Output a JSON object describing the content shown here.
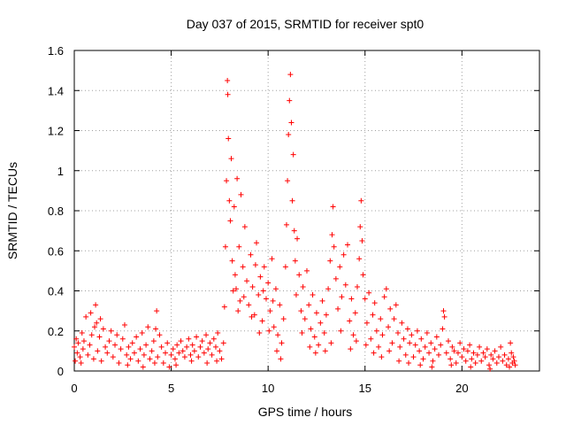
{
  "chart_data": {
    "type": "scatter",
    "title": "Day 037 of 2015, SRMTID for receiver spt0",
    "xlabel": "GPS time / hours",
    "ylabel": "SRMTID / TECUs",
    "xlim": [
      0,
      24
    ],
    "ylim": [
      0,
      1.6
    ],
    "xticks": [
      0,
      5,
      10,
      15,
      20
    ],
    "xtick_labels": [
      "0",
      "5",
      "10",
      "15",
      "20"
    ],
    "yticks": [
      0,
      0.2,
      0.4,
      0.6,
      0.8,
      1.0,
      1.2,
      1.4,
      1.6
    ],
    "ytick_labels": [
      "0",
      "0.2",
      "0.4",
      "0.6",
      "0.8",
      "1",
      "1.2",
      "1.4",
      "1.6"
    ],
    "grid": true,
    "marker": "+",
    "marker_color": "#ff0000",
    "series": [
      {
        "name": "SRMTID",
        "points": [
          [
            0.0,
            0.12
          ],
          [
            0.1,
            0.16
          ],
          [
            0.15,
            0.09
          ],
          [
            0.2,
            0.14
          ],
          [
            0.3,
            0.07
          ],
          [
            0.4,
            0.19
          ],
          [
            0.45,
            0.11
          ],
          [
            0.5,
            0.15
          ],
          [
            0.6,
            0.27
          ],
          [
            0.7,
            0.08
          ],
          [
            0.8,
            0.13
          ],
          [
            0.85,
            0.29
          ],
          [
            0.9,
            0.18
          ],
          [
            1.0,
            0.06
          ],
          [
            1.05,
            0.22
          ],
          [
            1.1,
            0.33
          ],
          [
            1.15,
            0.24
          ],
          [
            1.2,
            0.1
          ],
          [
            1.3,
            0.17
          ],
          [
            1.4,
            0.05
          ],
          [
            1.5,
            0.21
          ],
          [
            1.6,
            0.12
          ],
          [
            1.7,
            0.09
          ],
          [
            1.8,
            0.15
          ],
          [
            1.9,
            0.2
          ],
          [
            2.0,
            0.07
          ],
          [
            2.1,
            0.13
          ],
          [
            2.2,
            0.18
          ],
          [
            2.3,
            0.04
          ],
          [
            2.4,
            0.11
          ],
          [
            2.5,
            0.16
          ],
          [
            2.6,
            0.23
          ],
          [
            2.7,
            0.08
          ],
          [
            2.8,
            0.12
          ],
          [
            2.9,
            0.06
          ],
          [
            3.0,
            0.14
          ],
          [
            3.1,
            0.09
          ],
          [
            3.2,
            0.17
          ],
          [
            3.3,
            0.05
          ],
          [
            3.4,
            0.11
          ],
          [
            3.5,
            0.19
          ],
          [
            3.6,
            0.08
          ],
          [
            3.7,
            0.13
          ],
          [
            3.8,
            0.22
          ],
          [
            3.9,
            0.06
          ],
          [
            4.0,
            0.1
          ],
          [
            4.1,
            0.15
          ],
          [
            4.2,
            0.21
          ],
          [
            4.25,
            0.3
          ],
          [
            4.3,
            0.07
          ],
          [
            4.4,
            0.18
          ],
          [
            4.5,
            0.12
          ],
          [
            4.6,
            0.04
          ],
          [
            4.7,
            0.09
          ],
          [
            4.8,
            0.14
          ],
          [
            4.9,
            0.02
          ],
          [
            5.0,
            0.08
          ],
          [
            5.1,
            0.11
          ],
          [
            5.2,
            0.06
          ],
          [
            5.3,
            0.13
          ],
          [
            5.4,
            0.09
          ],
          [
            5.5,
            0.15
          ],
          [
            5.6,
            0.1
          ],
          [
            5.7,
            0.07
          ],
          [
            5.8,
            0.12
          ],
          [
            5.9,
            0.16
          ],
          [
            6.0,
            0.08
          ],
          [
            6.1,
            0.13
          ],
          [
            6.2,
            0.1
          ],
          [
            6.3,
            0.17
          ],
          [
            6.4,
            0.07
          ],
          [
            6.5,
            0.12
          ],
          [
            6.6,
            0.15
          ],
          [
            6.7,
            0.09
          ],
          [
            6.8,
            0.18
          ],
          [
            6.9,
            0.11
          ],
          [
            7.0,
            0.14
          ],
          [
            7.1,
            0.08
          ],
          [
            7.2,
            0.16
          ],
          [
            7.3,
            0.12
          ],
          [
            7.4,
            0.19
          ],
          [
            7.5,
            0.1
          ],
          [
            7.6,
            0.06
          ],
          [
            7.7,
            0.14
          ],
          [
            7.75,
            0.32
          ],
          [
            7.8,
            0.62
          ],
          [
            7.85,
            0.95
          ],
          [
            7.9,
            1.45
          ],
          [
            7.92,
            1.38
          ],
          [
            7.95,
            1.16
          ],
          [
            8.0,
            0.85
          ],
          [
            8.05,
            0.75
          ],
          [
            8.1,
            1.06
          ],
          [
            8.15,
            0.55
          ],
          [
            8.2,
            0.4
          ],
          [
            8.25,
            0.82
          ],
          [
            8.3,
            0.48
          ],
          [
            8.4,
            0.96
          ],
          [
            8.5,
            0.62
          ],
          [
            8.55,
            0.35
          ],
          [
            8.6,
            0.88
          ],
          [
            8.7,
            0.52
          ],
          [
            8.8,
            0.72
          ],
          [
            8.9,
            0.45
          ],
          [
            9.0,
            0.33
          ],
          [
            9.1,
            0.58
          ],
          [
            9.2,
            0.42
          ],
          [
            9.3,
            0.28
          ],
          [
            9.4,
            0.64
          ],
          [
            9.5,
            0.38
          ],
          [
            9.6,
            0.47
          ],
          [
            9.7,
            0.25
          ],
          [
            9.8,
            0.52
          ],
          [
            9.9,
            0.36
          ],
          [
            10.0,
            0.44
          ],
          [
            10.1,
            0.3
          ],
          [
            10.2,
            0.56
          ],
          [
            10.3,
            0.22
          ],
          [
            10.4,
            0.41
          ],
          [
            10.5,
            0.18
          ],
          [
            10.6,
            0.33
          ],
          [
            10.7,
            0.14
          ],
          [
            10.8,
            0.26
          ],
          [
            10.9,
            0.52
          ],
          [
            10.95,
            0.73
          ],
          [
            11.0,
            0.95
          ],
          [
            11.05,
            1.18
          ],
          [
            11.1,
            1.35
          ],
          [
            11.15,
            1.48
          ],
          [
            11.2,
            1.24
          ],
          [
            11.25,
            0.85
          ],
          [
            11.3,
            1.08
          ],
          [
            11.35,
            0.7
          ],
          [
            11.4,
            0.55
          ],
          [
            11.5,
            0.66
          ],
          [
            11.6,
            0.48
          ],
          [
            11.7,
            0.3
          ],
          [
            11.8,
            0.42
          ],
          [
            11.9,
            0.26
          ],
          [
            12.0,
            0.5
          ],
          [
            12.1,
            0.33
          ],
          [
            12.2,
            0.21
          ],
          [
            12.3,
            0.38
          ],
          [
            12.4,
            0.17
          ],
          [
            12.5,
            0.29
          ],
          [
            12.6,
            0.13
          ],
          [
            12.7,
            0.24
          ],
          [
            12.8,
            0.35
          ],
          [
            12.9,
            0.19
          ],
          [
            13.0,
            0.28
          ],
          [
            13.1,
            0.41
          ],
          [
            13.2,
            0.55
          ],
          [
            13.3,
            0.68
          ],
          [
            13.35,
            0.82
          ],
          [
            13.4,
            0.62
          ],
          [
            13.5,
            0.46
          ],
          [
            13.6,
            0.31
          ],
          [
            13.7,
            0.52
          ],
          [
            13.8,
            0.37
          ],
          [
            13.9,
            0.58
          ],
          [
            14.0,
            0.43
          ],
          [
            14.1,
            0.63
          ],
          [
            14.2,
            0.25
          ],
          [
            14.3,
            0.36
          ],
          [
            14.4,
            0.18
          ],
          [
            14.5,
            0.29
          ],
          [
            14.6,
            0.42
          ],
          [
            14.7,
            0.56
          ],
          [
            14.75,
            0.72
          ],
          [
            14.8,
            0.85
          ],
          [
            14.85,
            0.65
          ],
          [
            14.9,
            0.48
          ],
          [
            15.0,
            0.36
          ],
          [
            15.1,
            0.24
          ],
          [
            15.2,
            0.39
          ],
          [
            15.3,
            0.16
          ],
          [
            15.4,
            0.28
          ],
          [
            15.5,
            0.34
          ],
          [
            15.6,
            0.2
          ],
          [
            15.7,
            0.12
          ],
          [
            15.8,
            0.26
          ],
          [
            15.9,
            0.18
          ],
          [
            16.0,
            0.37
          ],
          [
            16.1,
            0.41
          ],
          [
            16.2,
            0.22
          ],
          [
            16.3,
            0.31
          ],
          [
            16.4,
            0.14
          ],
          [
            16.5,
            0.26
          ],
          [
            16.6,
            0.33
          ],
          [
            16.7,
            0.19
          ],
          [
            16.8,
            0.12
          ],
          [
            16.9,
            0.24
          ],
          [
            17.0,
            0.16
          ],
          [
            17.1,
            0.08
          ],
          [
            17.2,
            0.21
          ],
          [
            17.3,
            0.14
          ],
          [
            17.4,
            0.18
          ],
          [
            17.5,
            0.07
          ],
          [
            17.6,
            0.13
          ],
          [
            17.7,
            0.2
          ],
          [
            17.8,
            0.1
          ],
          [
            17.9,
            0.16
          ],
          [
            18.0,
            0.06
          ],
          [
            18.1,
            0.12
          ],
          [
            18.2,
            0.19
          ],
          [
            18.3,
            0.09
          ],
          [
            18.4,
            0.14
          ],
          [
            18.5,
            0.05
          ],
          [
            18.6,
            0.11
          ],
          [
            18.7,
            0.17
          ],
          [
            18.8,
            0.08
          ],
          [
            18.9,
            0.13
          ],
          [
            19.0,
            0.21
          ],
          [
            19.05,
            0.3
          ],
          [
            19.1,
            0.27
          ],
          [
            19.2,
            0.09
          ],
          [
            19.3,
            0.15
          ],
          [
            19.4,
            0.06
          ],
          [
            19.5,
            0.12
          ],
          [
            19.6,
            0.1
          ],
          [
            19.7,
            0.04
          ],
          [
            19.8,
            0.09
          ],
          [
            19.9,
            0.14
          ],
          [
            20.0,
            0.07
          ],
          [
            20.1,
            0.11
          ],
          [
            20.2,
            0.05
          ],
          [
            20.3,
            0.1
          ],
          [
            20.4,
            0.13
          ],
          [
            20.5,
            0.06
          ],
          [
            20.6,
            0.09
          ],
          [
            20.7,
            0.04
          ],
          [
            20.8,
            0.08
          ],
          [
            20.9,
            0.12
          ],
          [
            21.0,
            0.05
          ],
          [
            21.1,
            0.09
          ],
          [
            21.2,
            0.07
          ],
          [
            21.3,
            0.11
          ],
          [
            21.4,
            0.03
          ],
          [
            21.5,
            0.08
          ],
          [
            21.6,
            0.06
          ],
          [
            21.7,
            0.1
          ],
          [
            21.8,
            0.04
          ],
          [
            21.9,
            0.07
          ],
          [
            22.0,
            0.12
          ],
          [
            22.1,
            0.05
          ],
          [
            22.2,
            0.08
          ],
          [
            22.3,
            0.03
          ],
          [
            22.4,
            0.06
          ],
          [
            22.5,
            0.14
          ],
          [
            22.55,
            0.09
          ],
          [
            22.6,
            0.04
          ],
          [
            22.65,
            0.07
          ],
          [
            22.7,
            0.05
          ],
          [
            22.75,
            0.03
          ],
          [
            0.05,
            0.05
          ],
          [
            0.35,
            0.04
          ],
          [
            1.35,
            0.26
          ],
          [
            2.75,
            0.03
          ],
          [
            3.55,
            0.02
          ],
          [
            4.15,
            0.04
          ],
          [
            5.25,
            0.03
          ],
          [
            6.05,
            0.05
          ],
          [
            6.85,
            0.04
          ],
          [
            7.35,
            0.05
          ],
          [
            8.35,
            0.41
          ],
          [
            8.45,
            0.3
          ],
          [
            8.75,
            0.37
          ],
          [
            9.15,
            0.27
          ],
          [
            9.35,
            0.53
          ],
          [
            9.55,
            0.19
          ],
          [
            9.75,
            0.4
          ],
          [
            10.05,
            0.2
          ],
          [
            10.25,
            0.35
          ],
          [
            10.45,
            0.1
          ],
          [
            10.65,
            0.06
          ],
          [
            11.45,
            0.38
          ],
          [
            11.75,
            0.19
          ],
          [
            12.15,
            0.12
          ],
          [
            12.45,
            0.09
          ],
          [
            12.95,
            0.1
          ],
          [
            13.25,
            0.14
          ],
          [
            13.75,
            0.2
          ],
          [
            14.25,
            0.11
          ],
          [
            14.55,
            0.15
          ],
          [
            15.05,
            0.13
          ],
          [
            15.45,
            0.09
          ],
          [
            15.85,
            0.07
          ],
          [
            16.25,
            0.1
          ],
          [
            16.75,
            0.05
          ],
          [
            17.25,
            0.04
          ],
          [
            17.85,
            0.03
          ],
          [
            18.45,
            0.02
          ],
          [
            19.45,
            0.03
          ],
          [
            20.45,
            0.02
          ],
          [
            21.45,
            0.01
          ],
          [
            22.45,
            0.02
          ]
        ]
      }
    ]
  }
}
